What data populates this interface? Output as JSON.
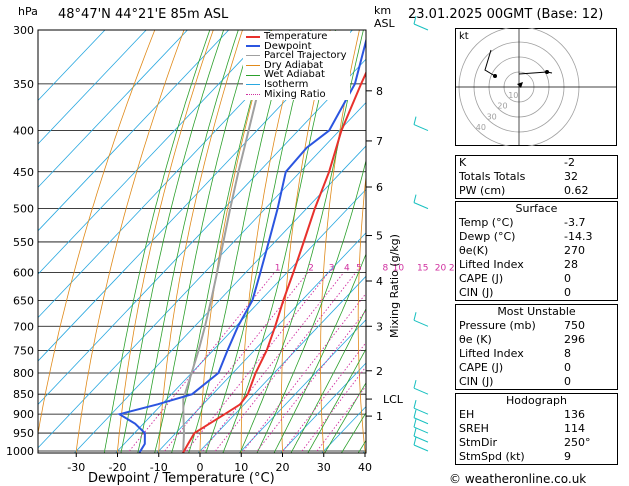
{
  "header": {
    "hpa_label": "hPa",
    "location": "48°47'N  44°21'E  85m  ASL",
    "km_label": "km",
    "asl_label": "ASL",
    "datetime": "23.01.2025  00GMT  (Base: 12)"
  },
  "axes": {
    "xlabel": "Dewpoint / Temperature (°C)",
    "mixing_label": "Mixing Ratio (g/kg)",
    "lcl_label": "LCL"
  },
  "legend": [
    {
      "name": "Temperature",
      "color": "#e8312c"
    },
    {
      "name": "Dewpoint",
      "color": "#2b55e0"
    },
    {
      "name": "Parcel Trajectory",
      "color": "#a0a0a0"
    },
    {
      "name": "Dry Adiabat",
      "color": "#e08a1a"
    },
    {
      "name": "Wet Adiabat",
      "color": "#2ca02c"
    },
    {
      "name": "Isotherm",
      "color": "#29a8e0"
    },
    {
      "name": "Mixing Ratio",
      "color": "#d030a0"
    }
  ],
  "chart_data": {
    "type": "line",
    "title": "",
    "pressure_levels": [
      300,
      350,
      400,
      450,
      500,
      550,
      600,
      650,
      700,
      750,
      800,
      850,
      900,
      950,
      1000
    ],
    "x_ticks": [
      -30,
      -20,
      -10,
      0,
      10,
      20,
      30,
      40
    ],
    "xlim": [
      -40,
      40
    ],
    "ylim": [
      1000,
      300
    ],
    "km_ticks": [
      {
        "label": "8",
        "p": 357
      },
      {
        "label": "7",
        "p": 412
      },
      {
        "label": "6",
        "p": 470
      },
      {
        "label": "5",
        "p": 540
      },
      {
        "label": "4",
        "p": 615
      },
      {
        "label": "3",
        "p": 700
      },
      {
        "label": "2",
        "p": 795
      },
      {
        "label": "1",
        "p": 905
      }
    ],
    "lcl_p": 862,
    "mixing_ratio_labels": [
      "1",
      "2",
      "3",
      "4",
      "5",
      "8",
      "10",
      "15",
      "20",
      "25"
    ],
    "mixing_ratio_values": [
      1,
      2,
      3,
      4,
      5,
      8,
      10,
      15,
      20,
      25
    ],
    "series": [
      {
        "name": "Temperature",
        "points": [
          {
            "p": 1005,
            "t": -3.7
          },
          {
            "p": 980,
            "t": -4.5
          },
          {
            "p": 950,
            "t": -5.5
          },
          {
            "p": 925,
            "t": -4.0
          },
          {
            "p": 900,
            "t": -2.5
          },
          {
            "p": 875,
            "t": -1.0
          },
          {
            "p": 850,
            "t": -1.5
          },
          {
            "p": 800,
            "t": -4.5
          },
          {
            "p": 750,
            "t": -7.0
          },
          {
            "p": 700,
            "t": -10.5
          },
          {
            "p": 650,
            "t": -14.5
          },
          {
            "p": 600,
            "t": -18.5
          },
          {
            "p": 550,
            "t": -23.0
          },
          {
            "p": 500,
            "t": -28.0
          },
          {
            "p": 450,
            "t": -33.0
          },
          {
            "p": 400,
            "t": -39.5
          },
          {
            "p": 350,
            "t": -45.5
          },
          {
            "p": 300,
            "t": -52.0
          }
        ]
      },
      {
        "name": "Dewpoint",
        "points": [
          {
            "p": 1005,
            "t": -14.3
          },
          {
            "p": 980,
            "t": -15.0
          },
          {
            "p": 950,
            "t": -17.5
          },
          {
            "p": 925,
            "t": -22.0
          },
          {
            "p": 900,
            "t": -28.0
          },
          {
            "p": 875,
            "t": -21.0
          },
          {
            "p": 850,
            "t": -15.0
          },
          {
            "p": 800,
            "t": -13.5
          },
          {
            "p": 750,
            "t": -16.5
          },
          {
            "p": 700,
            "t": -19.5
          },
          {
            "p": 650,
            "t": -22.0
          },
          {
            "p": 600,
            "t": -26.5
          },
          {
            "p": 550,
            "t": -31.5
          },
          {
            "p": 500,
            "t": -37.0
          },
          {
            "p": 450,
            "t": -43.5
          },
          {
            "p": 420,
            "t": -44.0
          },
          {
            "p": 400,
            "t": -42.5
          },
          {
            "p": 350,
            "t": -47.0
          },
          {
            "p": 300,
            "t": -56.0
          }
        ]
      },
      {
        "name": "Parcel Trajectory",
        "points": [
          {
            "p": 1005,
            "t": -3.7
          },
          {
            "p": 950,
            "t": -8.0
          },
          {
            "p": 900,
            "t": -12.5
          },
          {
            "p": 862,
            "t": -16.0
          },
          {
            "p": 800,
            "t": -20.0
          },
          {
            "p": 750,
            "t": -23.5
          },
          {
            "p": 700,
            "t": -27.5
          },
          {
            "p": 650,
            "t": -32.0
          },
          {
            "p": 600,
            "t": -37.0
          },
          {
            "p": 550,
            "t": -42.5
          },
          {
            "p": 500,
            "t": -48.5
          },
          {
            "p": 450,
            "t": -55.0
          },
          {
            "p": 400,
            "t": -62.0
          },
          {
            "p": 350,
            "t": -70.0
          }
        ]
      }
    ]
  },
  "hodograph": {
    "kt_label": "kt",
    "ring_labels": [
      "10",
      "20",
      "30",
      "40"
    ]
  },
  "indices": [
    {
      "label": "K",
      "value": "-2"
    },
    {
      "label": "Totals Totals",
      "value": "32"
    },
    {
      "label": "PW (cm)",
      "value": "0.62"
    }
  ],
  "surface": {
    "title": "Surface",
    "rows": [
      {
        "label": "Temp (°C)",
        "value": "-3.7"
      },
      {
        "label": "Dewp (°C)",
        "value": "-14.3"
      },
      {
        "label": "θe(K)",
        "value": "270"
      },
      {
        "label": "Lifted Index",
        "value": "28"
      },
      {
        "label": "CAPE (J)",
        "value": "0"
      },
      {
        "label": "CIN (J)",
        "value": "0"
      }
    ]
  },
  "most_unstable": {
    "title": "Most Unstable",
    "rows": [
      {
        "label": "Pressure (mb)",
        "value": "750"
      },
      {
        "label": "θe (K)",
        "value": "296"
      },
      {
        "label": "Lifted Index",
        "value": "8"
      },
      {
        "label": "CAPE (J)",
        "value": "0"
      },
      {
        "label": "CIN (J)",
        "value": "0"
      }
    ]
  },
  "hodograph_stats": {
    "title": "Hodograph",
    "rows": [
      {
        "label": "EH",
        "value": "136"
      },
      {
        "label": "SREH",
        "value": "114"
      },
      {
        "label": "StmDir",
        "value": "250°"
      },
      {
        "label": "StmSpd (kt)",
        "value": "9"
      }
    ]
  },
  "footer": {
    "copyright": "© weatheronline.co.uk"
  }
}
